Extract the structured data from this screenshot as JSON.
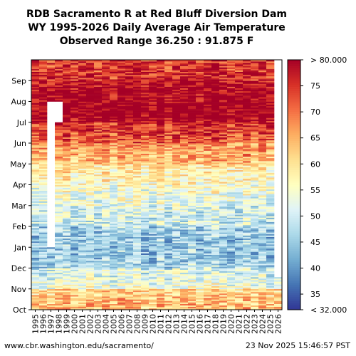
{
  "title": {
    "line1": "RDB Sacramento R at Red Bluff Diversion Dam",
    "line2": "WY 1995-2026 Daily Average Air Temperature",
    "line3": "Observed Range 36.250 : 91.875 F"
  },
  "footer": {
    "url": "www.cbr.washington.edu/sacramento/",
    "timestamp": "23 Nov 2025 15:46:57 PST"
  },
  "chart_data": {
    "type": "heatmap",
    "x": [
      "1995",
      "1996",
      "1997",
      "1998",
      "1999",
      "2000",
      "2001",
      "2002",
      "2003",
      "2004",
      "2005",
      "2006",
      "2007",
      "2008",
      "2009",
      "2010",
      "2011",
      "2012",
      "2013",
      "2014",
      "2015",
      "2016",
      "2017",
      "2018",
      "2019",
      "2020",
      "2021",
      "2022",
      "2023",
      "2024",
      "2025",
      "2026"
    ],
    "y_ticks": [
      "Oct",
      "Nov",
      "Dec",
      "Jan",
      "Feb",
      "Mar",
      "Apr",
      "May",
      "Jun",
      "Jul",
      "Aug",
      "Sep"
    ],
    "colorbar": {
      "min": 32,
      "max": 80,
      "ticks": [
        35,
        40,
        45,
        50,
        55,
        60,
        65,
        70,
        75
      ],
      "min_label": "< 32.000",
      "max_label": "> 80.000",
      "colormap": "RdYlBu_r"
    },
    "monthly_mean_by_water_year_month": {
      "months": [
        "Oct",
        "Nov",
        "Dec",
        "Jan",
        "Feb",
        "Mar",
        "Apr",
        "May",
        "Jun",
        "Jul",
        "Aug",
        "Sep"
      ],
      "values": [
        64,
        52,
        45,
        45,
        50,
        54,
        58,
        66,
        74,
        82,
        80,
        75
      ]
    },
    "missing": [
      {
        "water_year": "1997",
        "from": "Jan",
        "to": "Jul"
      },
      {
        "water_year": "1998",
        "from": "Jul",
        "to": "Jul"
      }
    ]
  }
}
